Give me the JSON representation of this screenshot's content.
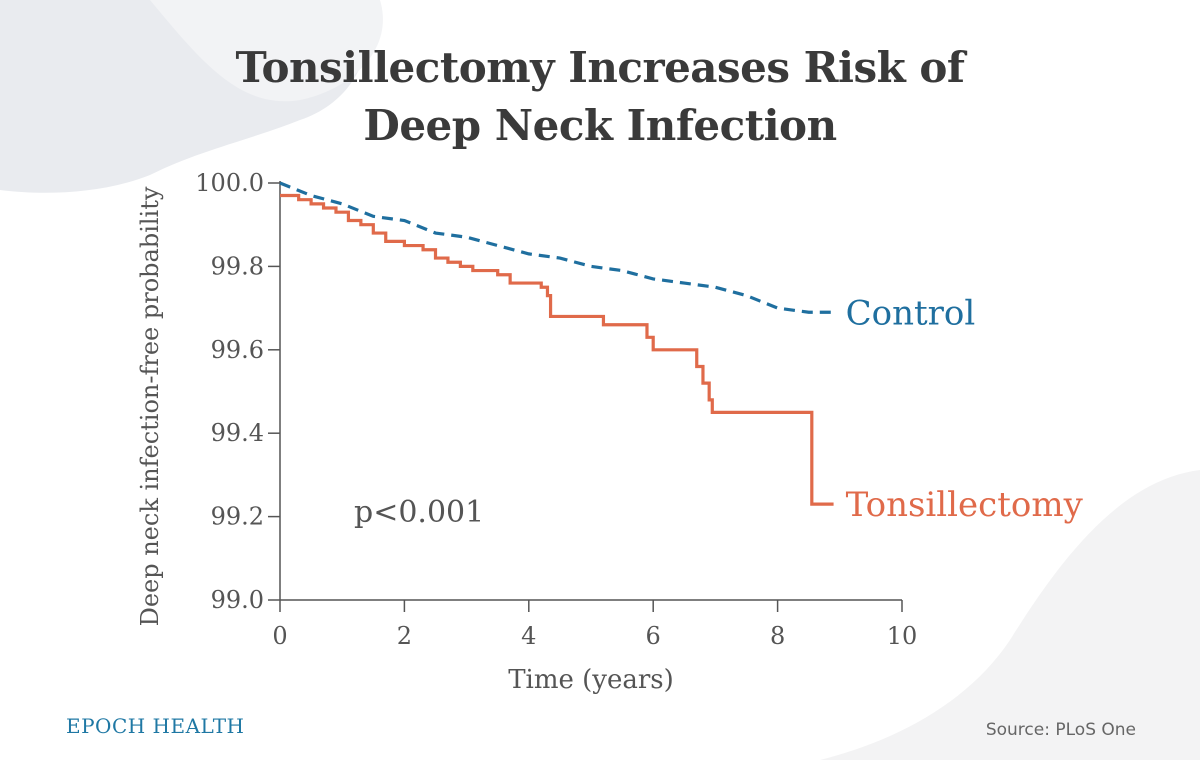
{
  "title": {
    "line1": "Tonsillectomy Increases Risk of",
    "line2": "Deep Neck Infection"
  },
  "brand": "EPOCH HEALTH",
  "source": "Source: PLoS One",
  "colors": {
    "control": "#1f6f9f",
    "tonsillectomy": "#e06a4a",
    "axis": "#555555",
    "text": "#555555"
  },
  "chart_data": {
    "type": "line",
    "title": "Tonsillectomy Increases Risk of Deep Neck Infection",
    "xlabel": "Time (years)",
    "ylabel": "Deep neck infection-free probability",
    "xlim": [
      0,
      10
    ],
    "ylim": [
      99.0,
      100.0
    ],
    "xticks": [
      0,
      2,
      4,
      6,
      8,
      10
    ],
    "yticks": [
      "100.0",
      "99.8",
      "99.6",
      "99.4",
      "99.2",
      "99.0"
    ],
    "grid": false,
    "legend": "inline labels at line ends",
    "annotation": "p<0.001",
    "series": [
      {
        "name": "Control",
        "style": "dashed",
        "points": [
          [
            0,
            100.0
          ],
          [
            0.5,
            99.97
          ],
          [
            1.0,
            99.95
          ],
          [
            1.5,
            99.92
          ],
          [
            2.0,
            99.91
          ],
          [
            2.5,
            99.88
          ],
          [
            3.0,
            99.87
          ],
          [
            3.5,
            99.85
          ],
          [
            4.0,
            99.83
          ],
          [
            4.5,
            99.82
          ],
          [
            5.0,
            99.8
          ],
          [
            5.5,
            99.79
          ],
          [
            6.0,
            99.77
          ],
          [
            6.5,
            99.76
          ],
          [
            7.0,
            99.75
          ],
          [
            7.5,
            99.73
          ],
          [
            8.0,
            99.7
          ],
          [
            8.5,
            99.69
          ],
          [
            8.9,
            99.69
          ]
        ]
      },
      {
        "name": "Tonsillectomy",
        "style": "step",
        "points": [
          [
            0,
            99.97
          ],
          [
            0.3,
            99.96
          ],
          [
            0.5,
            99.95
          ],
          [
            0.7,
            99.94
          ],
          [
            0.9,
            99.93
          ],
          [
            1.1,
            99.91
          ],
          [
            1.3,
            99.9
          ],
          [
            1.5,
            99.88
          ],
          [
            1.7,
            99.86
          ],
          [
            2.0,
            99.85
          ],
          [
            2.3,
            99.84
          ],
          [
            2.5,
            99.82
          ],
          [
            2.7,
            99.81
          ],
          [
            2.9,
            99.8
          ],
          [
            3.1,
            99.79
          ],
          [
            3.5,
            99.78
          ],
          [
            3.7,
            99.76
          ],
          [
            4.2,
            99.75
          ],
          [
            4.3,
            99.73
          ],
          [
            4.35,
            99.68
          ],
          [
            5.2,
            99.66
          ],
          [
            5.9,
            99.63
          ],
          [
            6.0,
            99.6
          ],
          [
            6.7,
            99.56
          ],
          [
            6.8,
            99.52
          ],
          [
            6.9,
            99.48
          ],
          [
            6.95,
            99.45
          ],
          [
            8.55,
            99.23
          ],
          [
            8.9,
            99.23
          ]
        ]
      }
    ]
  }
}
